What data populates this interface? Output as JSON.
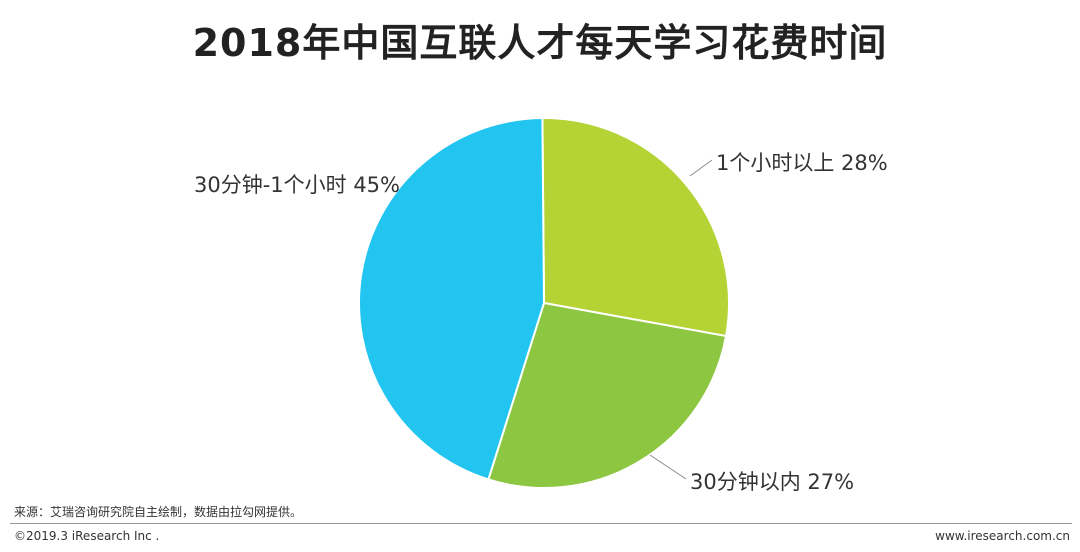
{
  "chart_data": {
    "type": "pie",
    "title": "2018年中国互联人才每天学习花费时间",
    "slices": [
      {
        "label": "1个小时以上",
        "value": 28,
        "value_label": "28%",
        "color": "#b5d335"
      },
      {
        "label": "30分钟以内",
        "value": 27,
        "value_label": "27%",
        "color": "#8dc641"
      },
      {
        "label": "30分钟-1个小时",
        "value": 45,
        "value_label": "45%",
        "color": "#22c4f0"
      }
    ]
  },
  "footer": {
    "source": "来源：艾瑞咨询研究院自主绘制，数据由拉勾网提供。",
    "copyright": "©2019.3 iResearch Inc .",
    "website": "www.iresearch.com.cn"
  }
}
